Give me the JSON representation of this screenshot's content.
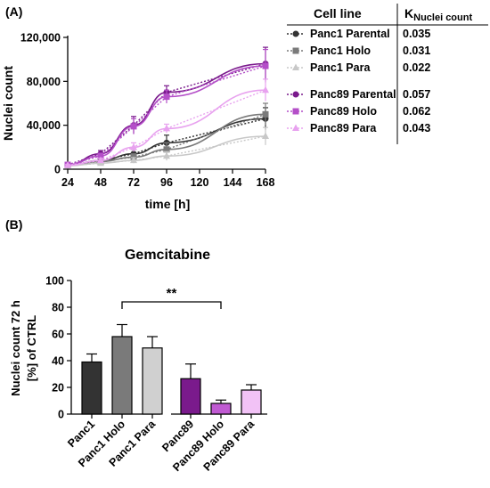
{
  "panel_a": {
    "label": "(A)",
    "chart_data": {
      "type": "line",
      "xlabel": "time [h]",
      "ylabel": "Nuclei count",
      "x": [
        24,
        48,
        72,
        96,
        168
      ],
      "xticks": [
        "24",
        "48",
        "72",
        "96",
        "120",
        "144",
        "168"
      ],
      "xlim": [
        24,
        168
      ],
      "yticks": [
        "0",
        "40,000",
        "80,000",
        "120,000"
      ],
      "ylim": [
        0,
        120000
      ],
      "series": [
        {
          "name": "Panc1 Parental",
          "color": "#333333",
          "marker": "circle",
          "y": [
            3500,
            8000,
            14000,
            24000,
            46000
          ],
          "err": [
            800,
            2000,
            4000,
            7000,
            10000
          ]
        },
        {
          "name": "Panc1 Holo",
          "color": "#7a7a7a",
          "marker": "square",
          "y": [
            3500,
            7000,
            11000,
            18000,
            50000
          ],
          "err": [
            800,
            1500,
            3000,
            6000,
            10000
          ]
        },
        {
          "name": "Panc1 Para",
          "color": "#c8c8c8",
          "marker": "triangle",
          "y": [
            3000,
            5500,
            8000,
            12000,
            30000
          ],
          "err": [
            600,
            1200,
            2500,
            4000,
            8000
          ]
        },
        {
          "name": "Panc89 Parental",
          "color": "#7a1a8c",
          "marker": "circle",
          "y": [
            4000,
            14000,
            40000,
            70000,
            96000
          ],
          "err": [
            800,
            3000,
            8000,
            6000,
            15000
          ]
        },
        {
          "name": "Panc89 Holo",
          "color": "#b44fc8",
          "marker": "square",
          "y": [
            4000,
            12000,
            39000,
            66000,
            94000
          ],
          "err": [
            800,
            2500,
            7000,
            6000,
            15000
          ]
        },
        {
          "name": "Panc89 Para",
          "color": "#e8a2ef",
          "marker": "triangle",
          "y": [
            3500,
            8000,
            20000,
            37000,
            72000
          ],
          "err": [
            700,
            2000,
            4000,
            4000,
            10000
          ]
        }
      ]
    },
    "table": {
      "header_line": "Cell line",
      "header_k": "K",
      "header_k_sub": "Nuclei count",
      "rows": [
        {
          "name": "Panc1 Parental",
          "k": "0.035"
        },
        {
          "name": "Panc1 Holo",
          "k": "0.031"
        },
        {
          "name": "Panc1 Para",
          "k": "0.022"
        },
        {
          "name": "Panc89 Parental",
          "k": "0.057"
        },
        {
          "name": "Panc89 Holo",
          "k": "0.062"
        },
        {
          "name": "Panc89 Para",
          "k": "0.043"
        }
      ]
    }
  },
  "panel_b": {
    "label": "(B)",
    "chart_data": {
      "type": "bar",
      "title": "Gemcitabine",
      "ylabel_line1": "Nuclei count 72 h",
      "ylabel_line2": "[%] of CTRL",
      "ylim": [
        0,
        100
      ],
      "yticks": [
        "0",
        "20",
        "40",
        "60",
        "80",
        "100"
      ],
      "categories": [
        "Panc1",
        "Panc1 Holo",
        "Panc1 Para",
        "Panc89",
        "Panc89 Holo",
        "Panc89 Para"
      ],
      "values": [
        39,
        58,
        49.5,
        26.5,
        8,
        18
      ],
      "errors": [
        6,
        9,
        8.5,
        11,
        2.5,
        4
      ],
      "colors": [
        "#333333",
        "#7a7a7a",
        "#d0d0d0",
        "#7a1a8c",
        "#c05ad2",
        "#f2c2f6"
      ],
      "significance": {
        "from": "Panc1 Holo",
        "to": "Panc89 Holo",
        "label": "**"
      }
    }
  }
}
